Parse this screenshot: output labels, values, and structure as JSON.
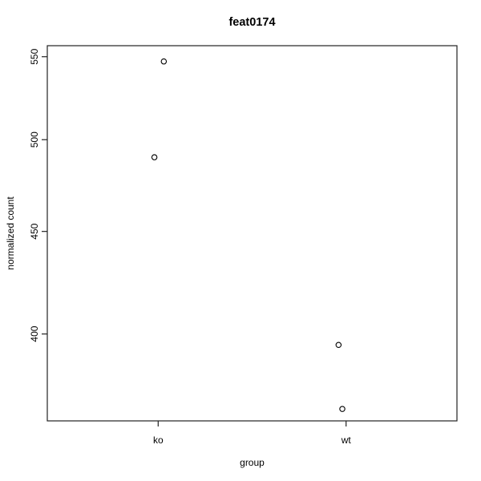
{
  "chart_data": {
    "type": "scatter",
    "title": "feat0174",
    "xlabel": "group",
    "ylabel": "normalized count",
    "x_categories": [
      {
        "label": "ko",
        "x": 1
      },
      {
        "label": "wt",
        "x": 2
      }
    ],
    "points": [
      {
        "group": "ko",
        "x": 1.03,
        "value": 547
      },
      {
        "group": "ko",
        "x": 0.98,
        "value": 490
      },
      {
        "group": "wt",
        "x": 1.96,
        "value": 395
      },
      {
        "group": "wt",
        "x": 1.98,
        "value": 367
      }
    ],
    "y_ticks": [
      400,
      450,
      500,
      550
    ],
    "y_scale": "log10",
    "ylim": [
      362,
      557
    ],
    "xlim": [
      0.41,
      2.59
    ],
    "grid": false,
    "legend": "none",
    "marker": "open-circle",
    "colors": {
      "points": "#000000",
      "axis": "#222222",
      "text": "#000000",
      "background": "#ffffff"
    }
  }
}
